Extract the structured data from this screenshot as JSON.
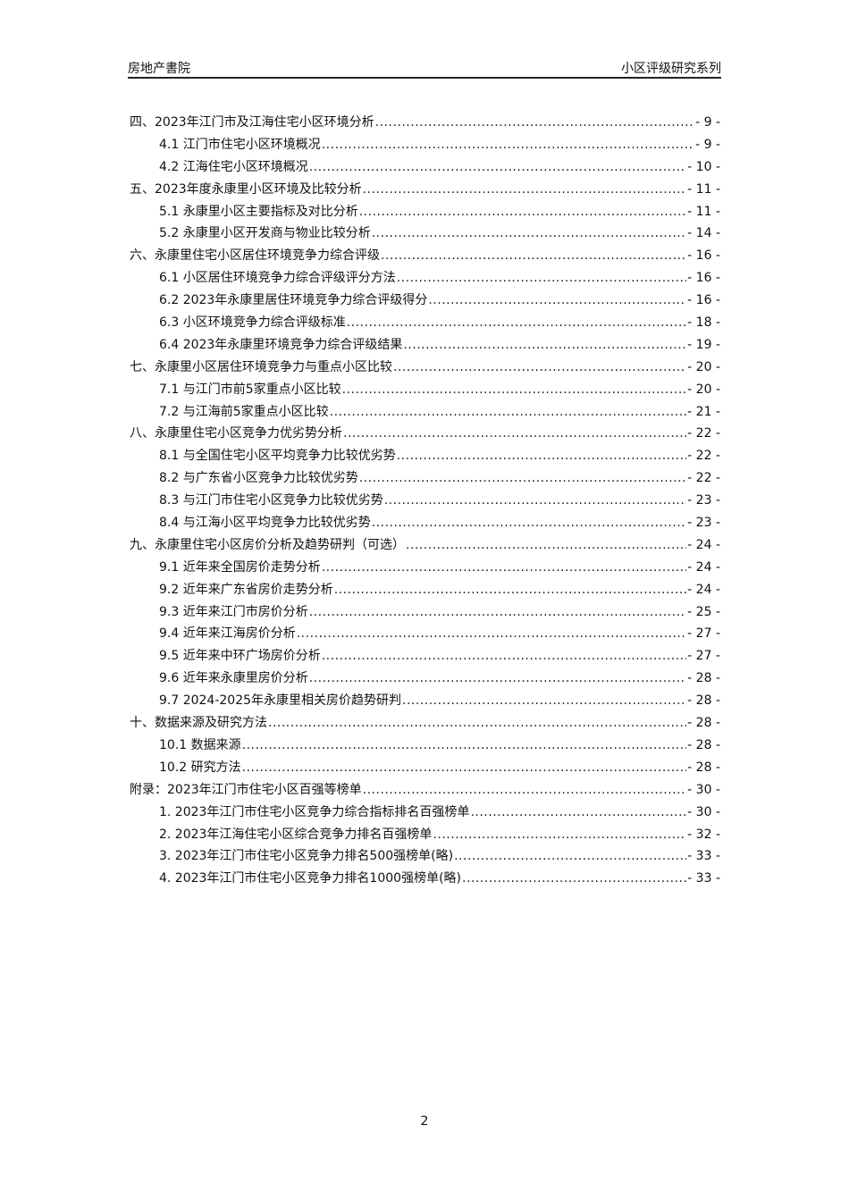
{
  "header": {
    "left": "房地产書院",
    "right": "小区评级研究系列"
  },
  "toc": [
    {
      "level": 1,
      "title": "四、2023年江门市及江海住宅小区环境分析",
      "page": "- 9 -"
    },
    {
      "level": 2,
      "title": "4.1 江门市住宅小区环境概况",
      "page": "- 9 -"
    },
    {
      "level": 2,
      "title": "4.2 江海住宅小区环境概况",
      "page": "- 10 -"
    },
    {
      "level": 1,
      "title": "五、2023年度永康里小区环境及比较分析",
      "page": "- 11 -"
    },
    {
      "level": 2,
      "title": "5.1 永康里小区主要指标及对比分析",
      "page": "- 11 -"
    },
    {
      "level": 2,
      "title": "5.2 永康里小区开发商与物业比较分析",
      "page": "- 14 -"
    },
    {
      "level": 1,
      "title": "六、永康里住宅小区居住环境竞争力综合评级",
      "page": "- 16 -"
    },
    {
      "level": 2,
      "title": "6.1 小区居住环境竞争力综合评级评分方法",
      "page": "- 16 -"
    },
    {
      "level": 2,
      "title": "6.2 2023年永康里居住环境竞争力综合评级得分",
      "page": "- 16 -"
    },
    {
      "level": 2,
      "title": "6.3 小区环境竞争力综合评级标准",
      "page": "- 18 -"
    },
    {
      "level": 2,
      "title": "6.4 2023年永康里环境竞争力综合评级结果",
      "page": "- 19 -"
    },
    {
      "level": 1,
      "title": "七、永康里小区居住环境竞争力与重点小区比较",
      "page": "- 20 -"
    },
    {
      "level": 2,
      "title": "7.1 与江门市前5家重点小区比较",
      "page": "- 20 -"
    },
    {
      "level": 2,
      "title": "7.2 与江海前5家重点小区比较",
      "page": "- 21 -"
    },
    {
      "level": 1,
      "title": "八、永康里住宅小区竞争力优劣势分析",
      "page": "- 22 -"
    },
    {
      "level": 2,
      "title": "8.1 与全国住宅小区平均竞争力比较优劣势",
      "page": "- 22 -"
    },
    {
      "level": 2,
      "title": "8.2 与广东省小区竞争力比较优劣势",
      "page": "- 22 -"
    },
    {
      "level": 2,
      "title": "8.3 与江门市住宅小区竞争力比较优劣势",
      "page": "- 23 -"
    },
    {
      "level": 2,
      "title": "8.4 与江海小区平均竞争力比较优劣势",
      "page": "- 23 -"
    },
    {
      "level": 1,
      "title": "九、永康里住宅小区房价分析及趋势研判（可选）",
      "page": "- 24 -"
    },
    {
      "level": 2,
      "title": "9.1 近年来全国房价走势分析",
      "page": "- 24 -"
    },
    {
      "level": 2,
      "title": "9.2 近年来广东省房价走势分析",
      "page": "- 24 -"
    },
    {
      "level": 2,
      "title": "9.3 近年来江门市房价分析",
      "page": "- 25 -"
    },
    {
      "level": 2,
      "title": "9.4 近年来江海房价分析",
      "page": "- 27 -"
    },
    {
      "level": 2,
      "title": "9.5 近年来中环广场房价分析",
      "page": "- 27 -"
    },
    {
      "level": 2,
      "title": "9.6 近年来永康里房价分析",
      "page": "- 28 -"
    },
    {
      "level": 2,
      "title": "9.7 2024-2025年永康里相关房价趋势研判",
      "page": "- 28 -"
    },
    {
      "level": 1,
      "title": "十、数据来源及研究方法",
      "page": "- 28 -"
    },
    {
      "level": 2,
      "title": "10.1 数据来源",
      "page": "- 28 -"
    },
    {
      "level": 2,
      "title": "10.2 研究方法",
      "page": "- 28 -"
    },
    {
      "level": 1,
      "title": "附录：2023年江门市住宅小区百强等榜单",
      "page": "- 30 -"
    },
    {
      "level": 2,
      "title": "1.  2023年江门市住宅小区竞争力综合指标排名百强榜单",
      "page": "- 30 -"
    },
    {
      "level": 2,
      "title": "2.  2023年江海住宅小区综合竞争力排名百强榜单",
      "page": "- 32 -"
    },
    {
      "level": 2,
      "title": "3.  2023年江门市住宅小区竞争力排名500强榜单(略)",
      "page": "- 33 -"
    },
    {
      "level": 2,
      "title": "4.  2023年江门市住宅小区竞争力排名1000强榜单(略)",
      "page": "- 33 -"
    }
  ],
  "footer": {
    "page_number": "2"
  }
}
